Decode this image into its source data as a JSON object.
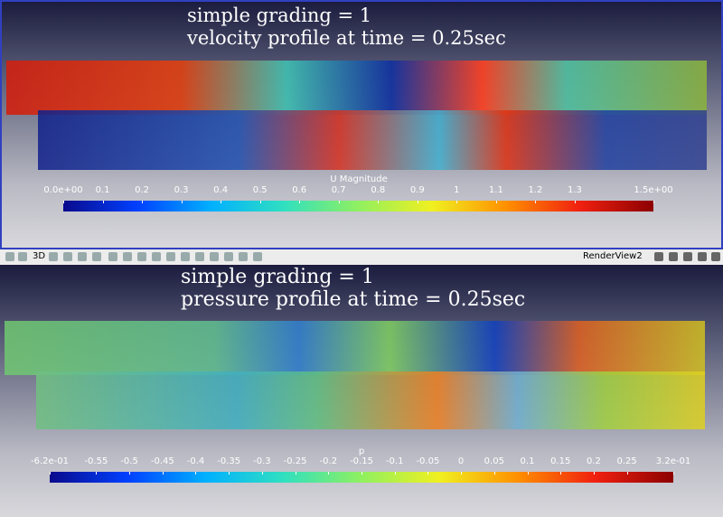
{
  "views": [
    {
      "title_lines": [
        "simple grading = 1",
        "velocity profile at time = 0.25sec"
      ],
      "colorbar": {
        "title": "U Magnitude",
        "range": [
          0,
          1.5
        ],
        "ticks": [
          {
            "value": 0,
            "label": "0.0e+00"
          },
          0.1,
          0.2,
          0.3,
          0.4,
          0.5,
          0.6,
          0.7,
          0.8,
          0.9,
          1,
          1.1,
          1.2,
          1.3,
          {
            "value": 1.5,
            "label": "1.5e+00"
          }
        ]
      }
    },
    {
      "title_lines": [
        "simple grading = 1",
        "pressure profile at time = 0.25sec"
      ],
      "colorbar": {
        "title": "p",
        "range": [
          -0.62,
          0.32
        ],
        "ticks": [
          {
            "value": -0.62,
            "label": "-6.2e-01"
          },
          -0.55,
          -0.5,
          -0.45,
          -0.4,
          -0.35,
          -0.3,
          -0.25,
          -0.2,
          -0.15,
          -0.1,
          -0.05,
          0,
          0.05,
          0.1,
          0.15,
          0.2,
          0.25,
          {
            "value": 0.32,
            "label": "3.2e-01"
          }
        ]
      }
    }
  ],
  "toolbar": {
    "view_name": "RenderView2",
    "mode_button": "3D"
  }
}
